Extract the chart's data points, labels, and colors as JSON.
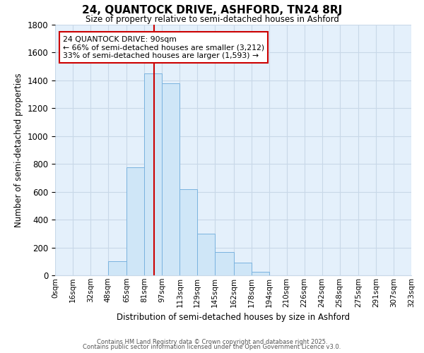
{
  "title": "24, QUANTOCK DRIVE, ASHFORD, TN24 8RJ",
  "subtitle": "Size of property relative to semi-detached houses in Ashford",
  "xlabel": "Distribution of semi-detached houses by size in Ashford",
  "ylabel": "Number of semi-detached properties",
  "bar_edges": [
    0,
    16,
    32,
    48,
    65,
    81,
    97,
    113,
    129,
    145,
    162,
    178,
    194,
    210,
    226,
    242,
    258,
    275,
    291,
    307,
    323
  ],
  "bar_heights": [
    0,
    0,
    0,
    100,
    775,
    1450,
    1380,
    620,
    300,
    165,
    90,
    25,
    0,
    0,
    0,
    0,
    0,
    0,
    0,
    0
  ],
  "bar_color": "#cfe6f7",
  "bar_edge_color": "#7ab3df",
  "property_size": 90,
  "property_line_color": "#cc0000",
  "annotation_line1": "24 QUANTOCK DRIVE: 90sqm",
  "annotation_line2": "← 66% of semi-detached houses are smaller (3,212)",
  "annotation_line3": "33% of semi-detached houses are larger (1,593) →",
  "annotation_box_color": "#cc0000",
  "ylim": [
    0,
    1800
  ],
  "yticks": [
    0,
    200,
    400,
    600,
    800,
    1000,
    1200,
    1400,
    1600,
    1800
  ],
  "x_tick_labels": [
    "0sqm",
    "16sqm",
    "32sqm",
    "48sqm",
    "65sqm",
    "81sqm",
    "97sqm",
    "113sqm",
    "129sqm",
    "145sqm",
    "162sqm",
    "178sqm",
    "194sqm",
    "210sqm",
    "226sqm",
    "242sqm",
    "258sqm",
    "275sqm",
    "291sqm",
    "307sqm",
    "323sqm"
  ],
  "footer_line1": "Contains HM Land Registry data © Crown copyright and database right 2025.",
  "footer_line2": "Contains public sector information licensed under the Open Government Licence v3.0.",
  "grid_color": "#c8d8e8",
  "bg_color": "#e4f0fb"
}
